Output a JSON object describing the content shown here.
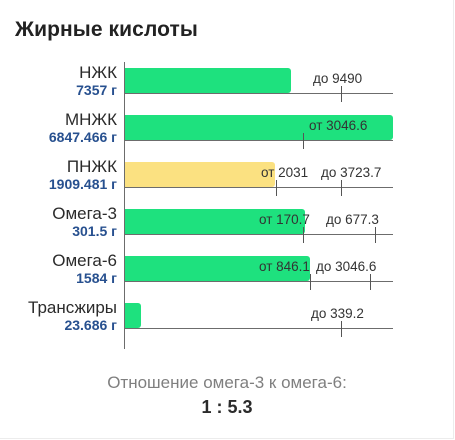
{
  "title": "Жирные кислоты",
  "colors": {
    "bar_green": "#1ee17e",
    "bar_yellow": "#fbe181",
    "amount_text": "#27508f",
    "ratio_label": "#7f7f7f"
  },
  "rows": [
    {
      "name": "НЖК",
      "amount": "7357 г",
      "bar_color": "green",
      "fill_percent": 62,
      "min_text": "",
      "max_text": "до 9490"
    },
    {
      "name": "МНЖК",
      "amount": "6847.466 г",
      "bar_color": "green",
      "fill_percent": 100,
      "min_text": "от 3046.6",
      "max_text": ""
    },
    {
      "name": "ПНЖК",
      "amount": "1909.481 г",
      "bar_color": "yellow",
      "fill_percent": 56,
      "min_text": "от 2031",
      "max_text": "до 3723.7"
    },
    {
      "name": "Омега-3",
      "amount": "301.5 г",
      "bar_color": "green",
      "fill_percent": 67,
      "min_text": "от 170.7",
      "max_text": "до 677.3"
    },
    {
      "name": "Омега-6",
      "amount": "1584 г",
      "bar_color": "green",
      "fill_percent": 69,
      "min_text": "от 846.1",
      "max_text": "до 3046.6"
    },
    {
      "name": "Трансжиры",
      "amount": "23.686 г",
      "bar_color": "green",
      "fill_percent": 6,
      "min_text": "",
      "max_text": "до 339.2"
    }
  ],
  "ratio": {
    "label": "Отношение омега-3 к омега-6:",
    "value": "1 : 5.3"
  }
}
